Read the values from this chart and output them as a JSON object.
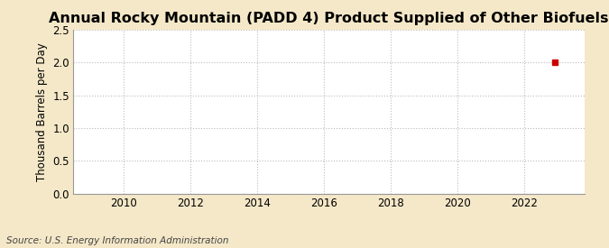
{
  "title": "Annual Rocky Mountain (PADD 4) Product Supplied of Other Biofuels",
  "ylabel": "Thousand Barrels per Day",
  "source": "Source: U.S. Energy Information Administration",
  "xmin": 2008.5,
  "xmax": 2023.8,
  "ymin": 0.0,
  "ymax": 2.5,
  "yticks": [
    0.0,
    0.5,
    1.0,
    1.5,
    2.0,
    2.5
  ],
  "xticks": [
    2010,
    2012,
    2014,
    2016,
    2018,
    2020,
    2022
  ],
  "data_x": [
    2022.9
  ],
  "data_y": [
    2.0
  ],
  "marker_color": "#cc0000",
  "marker_size": 4,
  "background_color": "#f5e8c8",
  "plot_bg_color": "#ffffff",
  "grid_color": "#bbbbbb",
  "title_fontsize": 11.5,
  "label_fontsize": 8.5,
  "tick_fontsize": 8.5,
  "source_fontsize": 7.5
}
